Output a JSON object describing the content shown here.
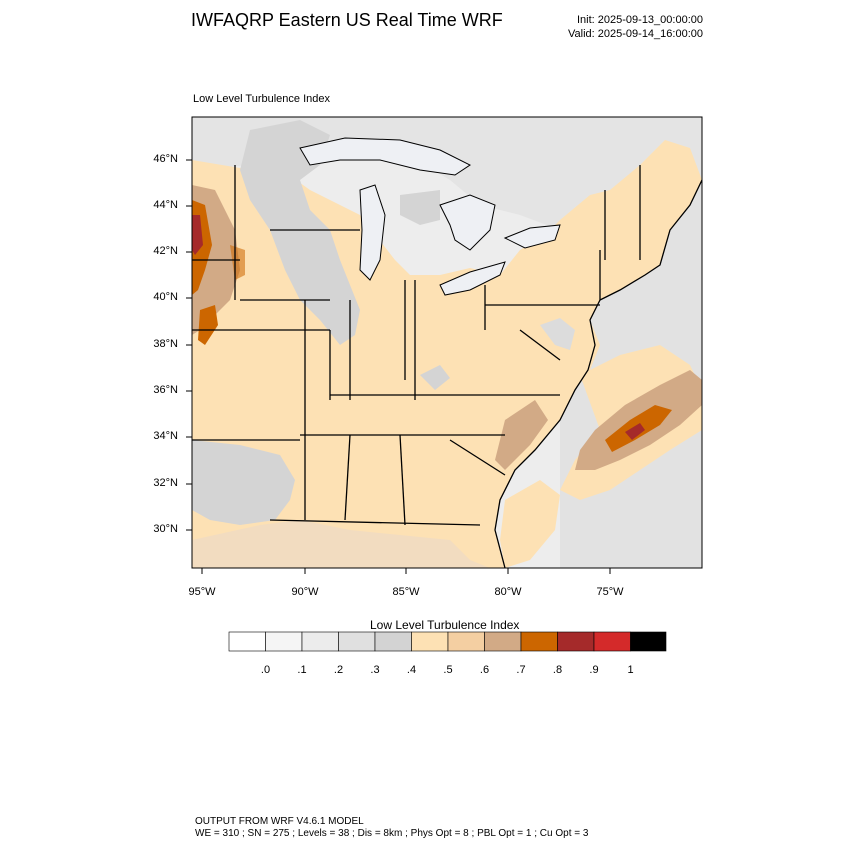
{
  "header": {
    "title": "IWFAQRP Eastern US Real Time WRF",
    "init": "Init: 2025-09-13_00:00:00",
    "valid": "Valid: 2025-09-14_16:00:00"
  },
  "map": {
    "subtitle": "Low Level Turbulence Index",
    "lat_labels": [
      "46°N",
      "44°N",
      "42°N",
      "40°N",
      "38°N",
      "36°N",
      "34°N",
      "32°N",
      "30°N"
    ],
    "lon_labels": [
      "95°W",
      "90°W",
      "85°W",
      "80°W",
      "75°W"
    ],
    "colors": {
      "low_gray": "#d4d4d4",
      "light_gray": "#e2e2e2",
      "land_peach": "#fde1b4",
      "tan": "#d2aa86",
      "orange": "#cc6600",
      "dark_red": "#a52a2a",
      "lake": "#eef0f4"
    }
  },
  "colorbar": {
    "title": "Low Level Turbulence Index",
    "colors": [
      "#ffffff",
      "#f5f5f5",
      "#ececec",
      "#e0e0e0",
      "#d3d3d3",
      "#fde1b4",
      "#f4cfa2",
      "#d2aa86",
      "#cc6600",
      "#a52a2a",
      "#d42a2a",
      "#000000"
    ],
    "labels": [
      ".0",
      ".1",
      ".2",
      ".3",
      ".4",
      ".5",
      ".6",
      ".7",
      ".8",
      ".9",
      "1"
    ]
  },
  "footer": {
    "line1": "OUTPUT FROM WRF V4.6.1 MODEL",
    "line2": "WE = 310 ; SN = 275 ; Levels = 38 ; Dis = 8km ; Phys Opt = 8 ; PBL Opt = 1 ; Cu Opt = 3"
  }
}
